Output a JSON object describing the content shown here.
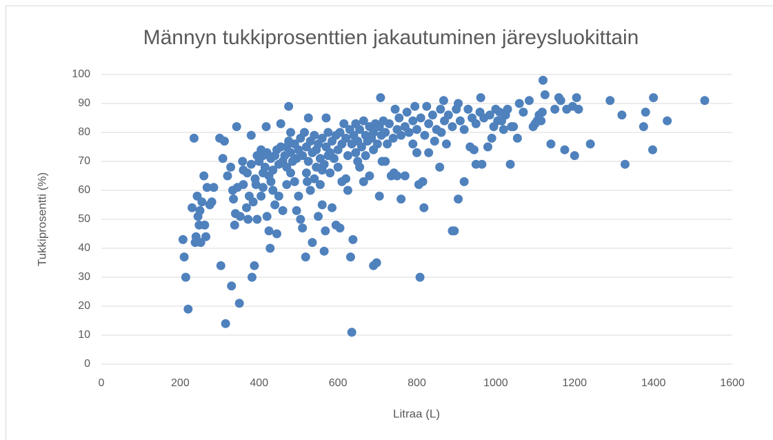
{
  "chart_data": {
    "type": "scatter",
    "title": "Männyn tukkiprosenttien jakautuminen järeysluokittain",
    "x_label": "Litraa (L)",
    "y_label": "Tukkiprosentti (%)",
    "color": "#4f81bd",
    "grid": true,
    "xlim": [
      0,
      1600
    ],
    "xticks": [
      0,
      200,
      400,
      600,
      800,
      1000,
      1200,
      1400,
      1600
    ],
    "ylim": [
      0,
      100
    ],
    "yticks": [
      0,
      10,
      20,
      30,
      40,
      50,
      60,
      70,
      80,
      90,
      100
    ],
    "x": [
      207,
      210,
      214,
      220,
      235,
      230,
      238,
      240,
      243,
      245,
      248,
      250,
      252,
      255,
      260,
      262,
      265,
      268,
      275,
      280,
      285,
      300,
      303,
      308,
      312,
      315,
      320,
      328,
      330,
      333,
      335,
      338,
      340,
      343,
      345,
      350,
      352,
      358,
      360,
      368,
      372,
      380,
      382,
      388,
      392,
      395,
      405,
      410,
      418,
      420,
      425,
      428,
      435,
      440,
      445,
      455,
      460,
      470,
      475,
      480,
      490,
      495,
      500,
      505,
      510,
      518,
      522,
      525,
      530,
      535,
      545,
      550,
      555,
      560,
      565,
      568,
      570,
      575,
      585,
      595,
      605,
      610,
      620,
      625,
      632,
      635,
      638,
      645,
      655,
      665,
      680,
      690,
      698,
      705,
      708,
      712,
      720,
      725,
      735,
      742,
      750,
      760,
      770,
      790,
      800,
      805,
      808,
      815,
      818,
      830,
      845,
      858,
      862,
      875,
      890,
      895,
      900,
      905,
      920,
      935,
      945,
      950,
      962,
      965,
      980,
      990,
      1005,
      1010,
      1020,
      1030,
      1037,
      1040,
      1055,
      1060,
      1070,
      1085,
      1095,
      1100,
      1105,
      1110,
      1115,
      1118,
      1120,
      1125,
      1140,
      1150,
      1160,
      1165,
      1175,
      1180,
      1195,
      1200,
      1205,
      1210,
      1240,
      1290,
      1320,
      1328,
      1375,
      1380,
      1398,
      1400,
      1435,
      1530,
      400,
      405,
      410,
      415,
      420,
      425,
      430,
      435,
      440,
      445,
      450,
      455,
      460,
      465,
      470,
      475,
      480,
      485,
      490,
      495,
      500,
      360,
      370,
      380,
      390,
      395,
      375,
      385,
      410,
      430,
      450,
      470,
      480,
      505,
      510,
      515,
      520,
      525,
      530,
      535,
      540,
      545,
      550,
      555,
      560,
      565,
      570,
      575,
      580,
      585,
      590,
      595,
      600,
      600,
      520,
      540,
      560,
      580,
      605,
      610,
      615,
      620,
      625,
      630,
      635,
      640,
      645,
      650,
      655,
      660,
      665,
      670,
      675,
      680,
      685,
      690,
      695,
      700,
      650,
      670,
      690,
      705,
      710,
      715,
      720,
      730,
      740,
      745,
      750,
      755,
      760,
      770,
      775,
      780,
      790,
      795,
      800,
      810,
      820,
      825,
      830,
      840,
      850,
      860,
      868,
      870,
      880,
      890,
      905,
      910,
      920,
      930,
      940,
      950,
      960,
      970,
      985,
      995,
      1000,
      1015,
      1025,
      1045
    ],
    "values": [
      43,
      37,
      30,
      19,
      78,
      54,
      42,
      44,
      58,
      51,
      48,
      53,
      42,
      56,
      65,
      48,
      44,
      61,
      55,
      56,
      61,
      78,
      34,
      71,
      77,
      14,
      65,
      68,
      27,
      60,
      57,
      48,
      52,
      82,
      61,
      21,
      51,
      70,
      67,
      54,
      50,
      79,
      30,
      34,
      62,
      50,
      58,
      66,
      82,
      51,
      46,
      40,
      60,
      55,
      45,
      83,
      53,
      75,
      89,
      80,
      63,
      53,
      58,
      50,
      47,
      37,
      63,
      85,
      60,
      42,
      68,
      51,
      62,
      55,
      39,
      46,
      85,
      72,
      54,
      48,
      47,
      63,
      64,
      60,
      37,
      11,
      43,
      73,
      68,
      63,
      65,
      34,
      35,
      58,
      92,
      70,
      70,
      76,
      65,
      66,
      65,
      57,
      65,
      76,
      73,
      62,
      30,
      63,
      54,
      73,
      77,
      68,
      80,
      76,
      46,
      46,
      88,
      57,
      63,
      75,
      74,
      69,
      92,
      69,
      75,
      78,
      84,
      87,
      81,
      88,
      69,
      82,
      78,
      90,
      87,
      91,
      82,
      83,
      84,
      86,
      84,
      87,
      98,
      93,
      76,
      88,
      92,
      91,
      74,
      88,
      89,
      72,
      92,
      88,
      76,
      91,
      86,
      69,
      82,
      87,
      74,
      92,
      84,
      91,
      70,
      74,
      72,
      68,
      73,
      65,
      71,
      67,
      72,
      74,
      69,
      75,
      70,
      72,
      68,
      77,
      73,
      70,
      76,
      71,
      74,
      62,
      66,
      69,
      64,
      72,
      58,
      56,
      61,
      63,
      58,
      62,
      66,
      78,
      72,
      80,
      75,
      70,
      77,
      73,
      79,
      74,
      76,
      71,
      78,
      69,
      75,
      80,
      73,
      77,
      71,
      79,
      74,
      68,
      66,
      64,
      67,
      66,
      80,
      76,
      83,
      78,
      72,
      81,
      76,
      79,
      83,
      77,
      81,
      75,
      84,
      79,
      77,
      82,
      78,
      80,
      83,
      76,
      70,
      72,
      74,
      82,
      79,
      84,
      80,
      83,
      78,
      88,
      81,
      85,
      79,
      82,
      87,
      80,
      84,
      89,
      81,
      85,
      79,
      89,
      83,
      86,
      81,
      88,
      91,
      84,
      86,
      82,
      90,
      84,
      81,
      88,
      85,
      83,
      87,
      85,
      86,
      82,
      88,
      84,
      86,
      82
    ]
  }
}
